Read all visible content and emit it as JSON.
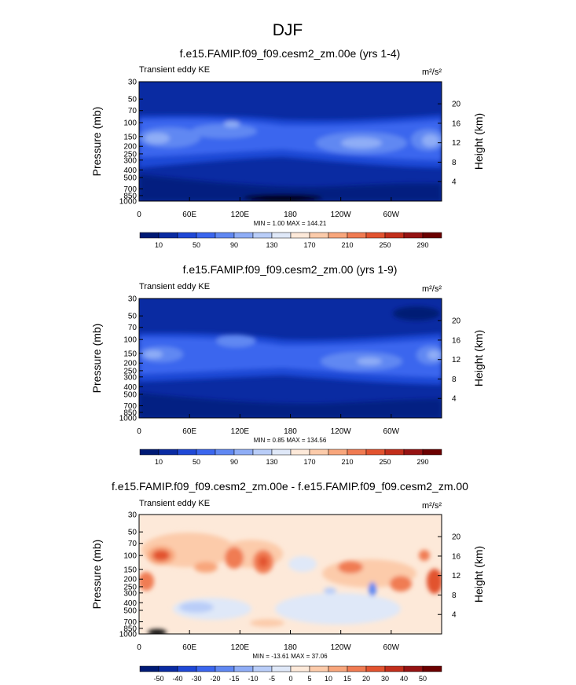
{
  "figure": {
    "title": "DJF",
    "min_prefix": "MIN =",
    "max_prefix": "MAX ="
  },
  "chart_data": [
    {
      "type": "heatmap",
      "title": "f.e15.FAMIP.f09_f09.cesm2_zm.00e (yrs 1-4)",
      "subtitle_left": "Transient eddy KE",
      "units": "m²/s²",
      "ylabel": "Pressure (mb)",
      "ylabel_right": "Height (km)",
      "x_ticks": [
        "0",
        "60E",
        "120E",
        "180",
        "120W",
        "60W"
      ],
      "y_ticks": [
        "30",
        "50",
        "70",
        "100",
        "150",
        "200",
        "250",
        "300",
        "400",
        "500",
        "700",
        "850",
        "1000"
      ],
      "y_ticks_right": [
        "20",
        "16",
        "12",
        "8",
        "4"
      ],
      "min": "1.00",
      "max": "144.21",
      "colorbar_labels": [
        "10",
        "50",
        "90",
        "130",
        "170",
        "210",
        "250",
        "290"
      ],
      "colors": [
        "#001a75",
        "#0a2ba2",
        "#1f48d6",
        "#3b66ee",
        "#6088f2",
        "#8fadf6",
        "#b9cdf8",
        "#dfe8f8",
        "#fde9d9",
        "#fccbaa",
        "#f8a67c",
        "#f07b52",
        "#e2532f",
        "#c22e1b",
        "#951212",
        "#6b0000"
      ],
      "grid": "off"
    },
    {
      "type": "heatmap",
      "title": "f.e15.FAMIP.f09_f09.cesm2_zm.00 (yrs 1-9)",
      "subtitle_left": "Transient eddy KE",
      "units": "m²/s²",
      "ylabel": "Pressure (mb)",
      "ylabel_right": "Height (km)",
      "x_ticks": [
        "0",
        "60E",
        "120E",
        "180",
        "120W",
        "60W"
      ],
      "y_ticks": [
        "30",
        "50",
        "70",
        "100",
        "150",
        "200",
        "250",
        "300",
        "400",
        "500",
        "700",
        "850",
        "1000"
      ],
      "y_ticks_right": [
        "20",
        "16",
        "12",
        "8",
        "4"
      ],
      "min": "0.85",
      "max": "134.56",
      "colorbar_labels": [
        "10",
        "50",
        "90",
        "130",
        "170",
        "210",
        "250",
        "290"
      ],
      "colors": [
        "#001a75",
        "#0a2ba2",
        "#1f48d6",
        "#3b66ee",
        "#6088f2",
        "#8fadf6",
        "#b9cdf8",
        "#dfe8f8",
        "#fde9d9",
        "#fccbaa",
        "#f8a67c",
        "#f07b52",
        "#e2532f",
        "#c22e1b",
        "#951212",
        "#6b0000"
      ],
      "grid": "off"
    },
    {
      "type": "heatmap",
      "title": "f.e15.FAMIP.f09_f09.cesm2_zm.00e - f.e15.FAMIP.f09_f09.cesm2_zm.00",
      "subtitle_left": "Transient eddy KE",
      "units": "m²/s²",
      "ylabel": "Pressure (mb)",
      "ylabel_right": "Height (km)",
      "x_ticks": [
        "0",
        "60E",
        "120E",
        "180",
        "120W",
        "60W"
      ],
      "y_ticks": [
        "30",
        "50",
        "70",
        "100",
        "150",
        "200",
        "250",
        "300",
        "400",
        "500",
        "700",
        "850",
        "1000"
      ],
      "y_ticks_right": [
        "20",
        "16",
        "12",
        "8",
        "4"
      ],
      "min": "-13.61",
      "max": "37.06",
      "colorbar_labels": [
        "-50",
        "-40",
        "-30",
        "-20",
        "-15",
        "-10",
        "-5",
        "0",
        "5",
        "10",
        "15",
        "20",
        "30",
        "40",
        "50"
      ],
      "colors": [
        "#001a75",
        "#0a2ba2",
        "#1f48d6",
        "#3b66ee",
        "#6088f2",
        "#8fadf6",
        "#b9cdf8",
        "#dfe8f8",
        "#fde9d9",
        "#fccbaa",
        "#f8a67c",
        "#f07b52",
        "#e2532f",
        "#c22e1b",
        "#951212",
        "#6b0000"
      ],
      "grid": "off"
    }
  ]
}
